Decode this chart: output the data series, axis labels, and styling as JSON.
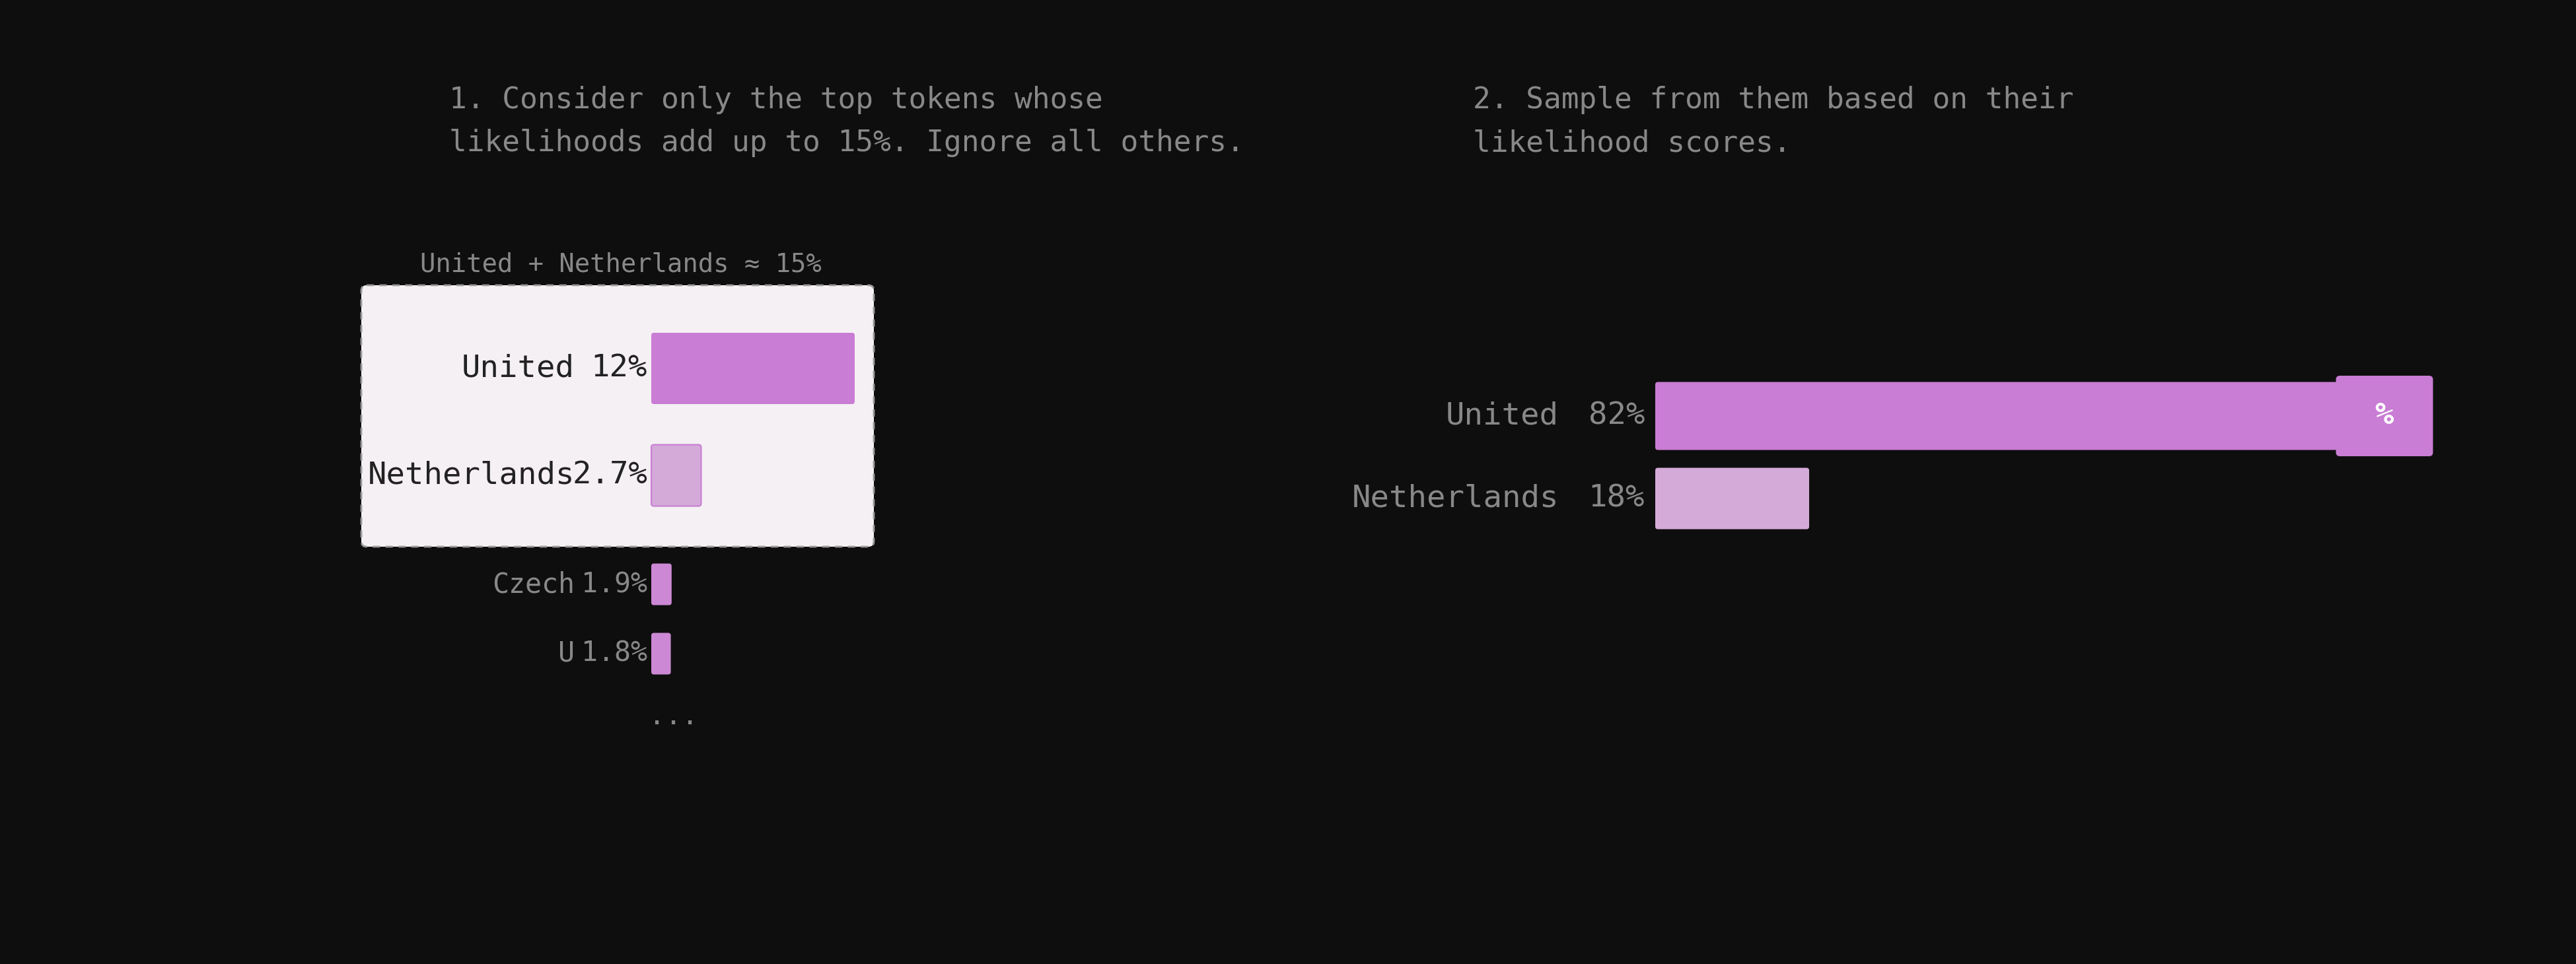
{
  "background_color": "#0e0e0e",
  "text_color_dark": "#888888",
  "text_color_inbox": "#222222",
  "bar_color_united": "#c97dd4",
  "bar_color_netherlands_inbox": "#d4aad8",
  "bar_color_outside": "#cc88d4",
  "box_background": "#f5f0f4",
  "box_border": "#999999",
  "left_title_line1": "1. Consider only the top tokens whose",
  "left_title_line2": "likelihoods add up to 15%. Ignore all others.",
  "right_title_line1": "2. Sample from them based on their",
  "right_title_line2": "likelihood scores.",
  "left_annotation": "United + Netherlands ≈ 15%",
  "left_bars": [
    {
      "label": "United",
      "pct": "12%",
      "value": 12,
      "in_box": true
    },
    {
      "label": "Netherlands",
      "pct": "2.7%",
      "value": 2.7,
      "in_box": true
    },
    {
      "label": "Czech",
      "pct": "1.9%",
      "value": 1.9,
      "in_box": false
    },
    {
      "label": "U",
      "pct": "1.8%",
      "value": 1.8,
      "in_box": false
    }
  ],
  "right_bars": [
    {
      "label": "United",
      "pct": "82%",
      "value": 82
    },
    {
      "label": "Netherlands",
      "pct": "18%",
      "value": 18
    }
  ],
  "title_fontsize": 32,
  "label_fontsize_inbox": 34,
  "label_fontsize_outside": 30,
  "pct_fontsize_inbox": 34,
  "pct_fontsize_outside": 30,
  "annotation_fontsize": 28
}
